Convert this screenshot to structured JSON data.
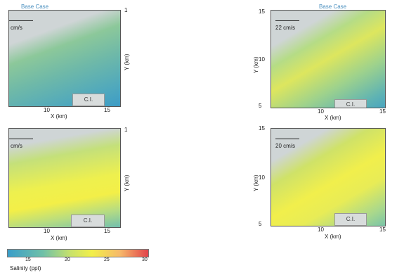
{
  "panels": [
    {
      "title": "Base Case",
      "speed": "cm/s",
      "tick_x": [
        "10",
        "15"
      ],
      "tick_y": [
        "1"
      ],
      "xlabel": "X (km)",
      "ylabel": "Y (km)",
      "ci": "C.I."
    },
    {
      "title": "Base Case",
      "speed": "22 cm/s",
      "tick_x": [
        "10",
        "15"
      ],
      "tick_y": [
        "15",
        "10",
        "5"
      ],
      "xlabel": "X (km)",
      "ylabel": "Y (km)",
      "ci": "C.I."
    },
    {
      "title": "",
      "speed": "cm/s",
      "tick_x": [
        "10",
        "15"
      ],
      "tick_y": [
        "1"
      ],
      "xlabel": "X (km)",
      "ylabel": "Y (km)",
      "ci": "C.I."
    },
    {
      "title": "",
      "speed": "20 cm/s",
      "tick_x": [
        "10",
        "15"
      ],
      "tick_y": [
        "15",
        "10",
        "5"
      ],
      "xlabel": "X (km)",
      "ylabel": "Y (km)",
      "ci": "C.I."
    }
  ],
  "colorbar": {
    "ticks": [
      "15",
      "20",
      "25",
      "30"
    ],
    "label": "Salinity (ppt)",
    "colors": [
      "#3a9ec9",
      "#6fc0a8",
      "#c9e26a",
      "#f2ef4a",
      "#f6b86a",
      "#e2424a"
    ]
  }
}
